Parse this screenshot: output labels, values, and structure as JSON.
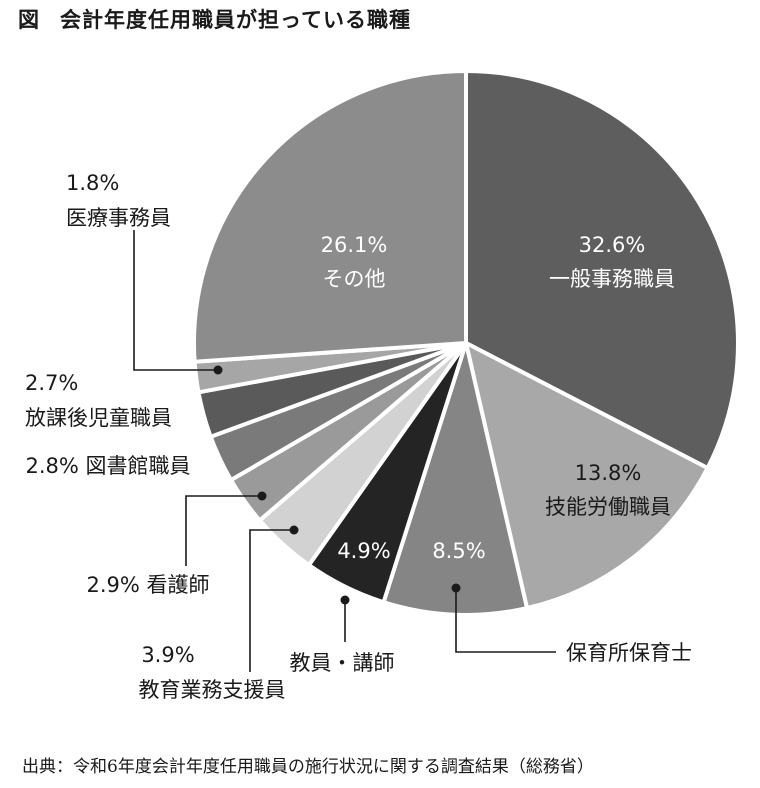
{
  "title": {
    "prefix": "図",
    "text": "会計年度任用職員が担っている職種"
  },
  "source": "出典：令和6年度会計年度任用職員の施行状況に関する調査結果（総務省）",
  "chart_data": {
    "type": "pie",
    "title": "会計年度任用職員が担っている職種",
    "start": "12 o'clock",
    "direction": "clockwise",
    "slices": [
      {
        "label": "一般事務職員",
        "value": 32.6,
        "value_label": "32.6%",
        "color": "#5e5e5e",
        "label_position": "inside"
      },
      {
        "label": "技能労働職員",
        "value": 13.8,
        "value_label": "13.8%",
        "color": "#a8a8a8",
        "label_position": "inside"
      },
      {
        "label": "保育所保育士",
        "value": 8.5,
        "value_label": "8.5%",
        "color": "#858585",
        "label_position": "inside-value, outside-name"
      },
      {
        "label": "教員・講師",
        "value": 4.9,
        "value_label": "4.9%",
        "color": "#242424",
        "label_position": "inside-value, outside-name"
      },
      {
        "label": "教育業務支援員",
        "value": 3.9,
        "value_label": "3.9%",
        "color": "#d2d2d2",
        "label_position": "outside"
      },
      {
        "label": "看護師",
        "value": 2.9,
        "value_label": "2.9%",
        "color": "#9a9a9a",
        "label_position": "outside"
      },
      {
        "label": "図書館職員",
        "value": 2.8,
        "value_label": "2.8%",
        "color": "#7a7a7a",
        "label_position": "outside"
      },
      {
        "label": "放課後児童職員",
        "value": 2.7,
        "value_label": "2.7%",
        "color": "#5a5a5a",
        "label_position": "outside"
      },
      {
        "label": "医療事務員",
        "value": 1.8,
        "value_label": "1.8%",
        "color": "#a6a6a6",
        "label_position": "outside"
      },
      {
        "label": "その他",
        "value": 26.1,
        "value_label": "26.1%",
        "color": "#8c8c8c",
        "label_position": "inside"
      }
    ]
  }
}
